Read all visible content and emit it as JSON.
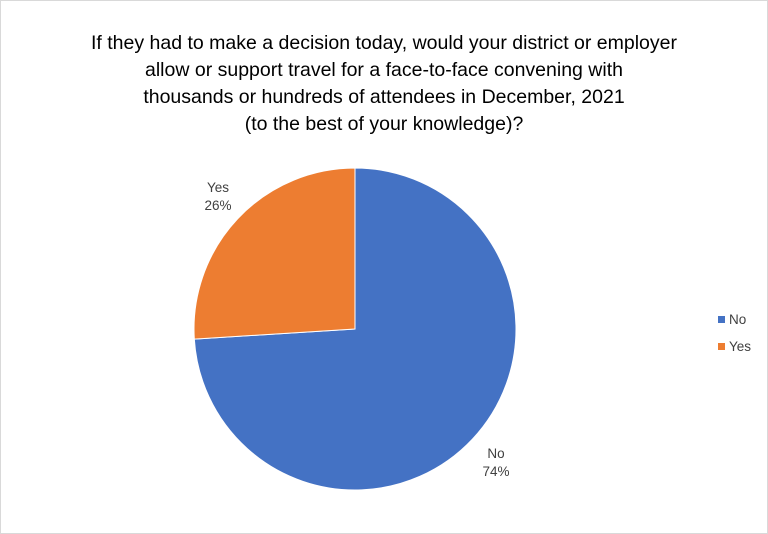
{
  "chart_data": {
    "type": "pie",
    "title_lines": [
      "If they had to make a decision today, would your district or employer",
      "allow or support travel for a face-to-face convening with",
      "thousands or hundreds of attendees in December, 2021",
      "(to the best of your knowledge)?"
    ],
    "slices": [
      {
        "name": "No",
        "value": 74,
        "label": "74%",
        "color": "#4472C4"
      },
      {
        "name": "Yes",
        "value": 26,
        "label": "26%",
        "color": "#ED7D31"
      }
    ],
    "legend_position": "right"
  }
}
